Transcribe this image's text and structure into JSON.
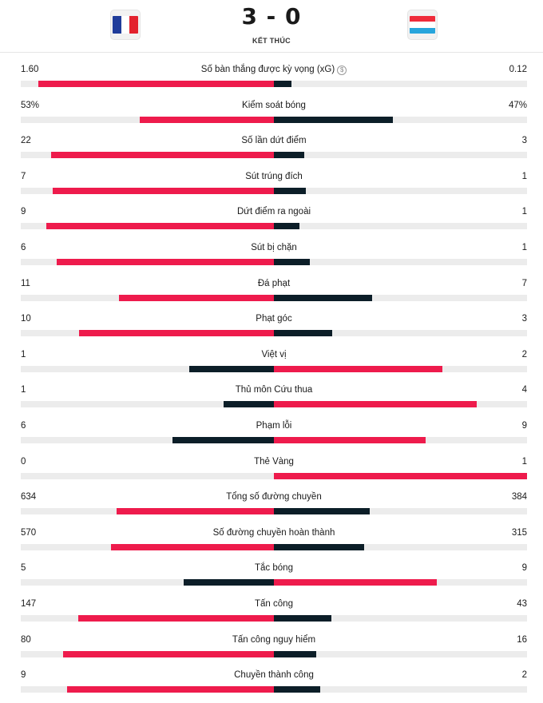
{
  "match": {
    "home_flag": "france-flag",
    "away_flag": "luxembourg-flag",
    "score": "3 - 0",
    "status": "KẾT THÚC"
  },
  "colors": {
    "leader": "#ee1b4c",
    "trailer": "#0c1e28",
    "track": "#ececec"
  },
  "stats": [
    {
      "label": "Số bàn thắng được kỳ vọng (xG)",
      "home": "1.60",
      "away": "0.12",
      "home_frac": 0.93,
      "away_frac": 0.07,
      "info_icon": true
    },
    {
      "label": "Kiểm soát bóng",
      "home": "53%",
      "away": "47%",
      "home_frac": 0.53,
      "away_frac": 0.47
    },
    {
      "label": "Số lần dứt điểm",
      "home": "22",
      "away": "3",
      "home_frac": 0.88,
      "away_frac": 0.12
    },
    {
      "label": "Sút trúng đích",
      "home": "7",
      "away": "1",
      "home_frac": 0.875,
      "away_frac": 0.125
    },
    {
      "label": "Dứt điểm ra ngoài",
      "home": "9",
      "away": "1",
      "home_frac": 0.9,
      "away_frac": 0.1
    },
    {
      "label": "Sút bị chặn",
      "home": "6",
      "away": "1",
      "home_frac": 0.857,
      "away_frac": 0.143
    },
    {
      "label": "Đá phạt",
      "home": "11",
      "away": "7",
      "home_frac": 0.611,
      "away_frac": 0.389
    },
    {
      "label": "Phạt góc",
      "home": "10",
      "away": "3",
      "home_frac": 0.769,
      "away_frac": 0.231
    },
    {
      "label": "Việt vị",
      "home": "1",
      "away": "2",
      "home_frac": 0.333,
      "away_frac": 0.667
    },
    {
      "label": "Thủ môn Cứu thua",
      "home": "1",
      "away": "4",
      "home_frac": 0.2,
      "away_frac": 0.8
    },
    {
      "label": "Phạm lỗi",
      "home": "6",
      "away": "9",
      "home_frac": 0.4,
      "away_frac": 0.6
    },
    {
      "label": "Thẻ Vàng",
      "home": "0",
      "away": "1",
      "home_frac": 0.0,
      "away_frac": 1.0
    },
    {
      "label": "Tổng số đường chuyền",
      "home": "634",
      "away": "384",
      "home_frac": 0.623,
      "away_frac": 0.377
    },
    {
      "label": "Số đường chuyền hoàn thành",
      "home": "570",
      "away": "315",
      "home_frac": 0.644,
      "away_frac": 0.356
    },
    {
      "label": "Tắc bóng",
      "home": "5",
      "away": "9",
      "home_frac": 0.357,
      "away_frac": 0.643
    },
    {
      "label": "Tấn công",
      "home": "147",
      "away": "43",
      "home_frac": 0.774,
      "away_frac": 0.226
    },
    {
      "label": "Tấn công nguy hiểm",
      "home": "80",
      "away": "16",
      "home_frac": 0.833,
      "away_frac": 0.167
    },
    {
      "label": "Chuyền thành công",
      "home": "9",
      "away": "2",
      "home_frac": 0.818,
      "away_frac": 0.182
    }
  ]
}
